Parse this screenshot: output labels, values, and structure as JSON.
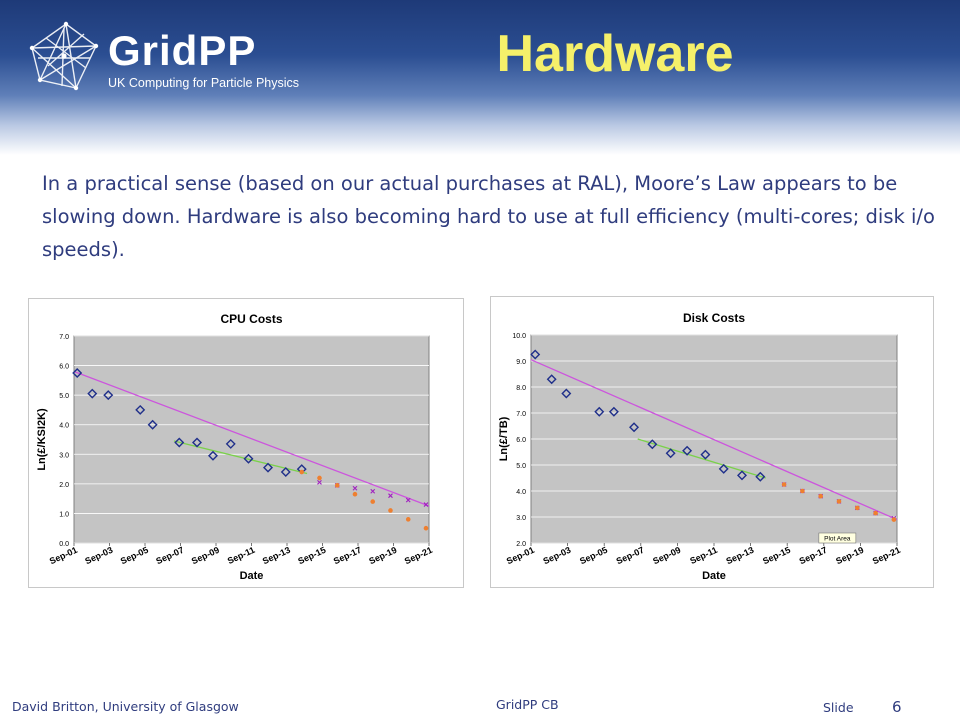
{
  "header": {
    "logo": {
      "name": "GridPP",
      "subtitle": "UK Computing for Particle Physics"
    },
    "title": "Hardware"
  },
  "body": {
    "intro": "In a practical sense (based on our actual purchases at RAL), Moore’s Law appears to be slowing down. Hardware is also becoming hard to use at full efficiency (multi-cores; disk i/o speeds)."
  },
  "chart_data": [
    {
      "type": "scatter",
      "title": "CPU Costs",
      "xlabel": "Date",
      "ylabel": "Ln(£/KSI2K)",
      "ylim": [
        0,
        7
      ],
      "yticks": [
        "0.0",
        "1.0",
        "2.0",
        "3.0",
        "4.0",
        "5.0",
        "6.0",
        "7.0"
      ],
      "x_tick_labels": [
        "Sep-01",
        "Sep-03",
        "Sep-05",
        "Sep-07",
        "Sep-09",
        "Sep-11",
        "Sep-13",
        "Sep-15",
        "Sep-17",
        "Sep-19",
        "Sep-21"
      ],
      "xlim": [
        2001.67,
        2021.67
      ],
      "grid": true,
      "plot_background": "#c4c4c4",
      "series": [
        {
          "marker": "diamond",
          "color": "#1f2f8a",
          "x": [
            2001.85,
            2002.7,
            2003.6,
            2005.4,
            2006.1,
            2007.6,
            2008.6,
            2009.5,
            2010.5,
            2011.5,
            2012.6,
            2013.6,
            2014.5
          ],
          "y": [
            5.75,
            5.05,
            5.0,
            4.5,
            4.0,
            3.4,
            3.4,
            2.95,
            3.35,
            2.85,
            2.55,
            2.4,
            2.5
          ]
        },
        {
          "marker": "x",
          "color": "#a020c0",
          "x": [
            2015.5,
            2016.5,
            2017.5,
            2018.5,
            2019.5,
            2020.5,
            2021.5
          ],
          "y": [
            2.05,
            1.95,
            1.85,
            1.75,
            1.6,
            1.45,
            1.3
          ]
        },
        {
          "marker": "dot",
          "color": "#ee7f30",
          "x": [
            2014.5,
            2015.5,
            2016.5,
            2017.5,
            2018.5,
            2019.5,
            2020.5,
            2021.5
          ],
          "y": [
            2.4,
            2.2,
            1.95,
            1.65,
            1.4,
            1.1,
            0.8,
            0.5
          ]
        }
      ],
      "trendlines": [
        {
          "color": "#cc55dd",
          "x": [
            2001.67,
            2021.67
          ],
          "y": [
            5.8,
            1.25
          ]
        },
        {
          "color": "#7ad14a",
          "x": [
            2007.3,
            2014.8
          ],
          "y": [
            3.45,
            2.35
          ]
        }
      ]
    },
    {
      "type": "scatter",
      "title": "Disk Costs",
      "xlabel": "Date",
      "ylabel": "Ln(£/TB)",
      "ylim": [
        2,
        10
      ],
      "yticks": [
        "2.0",
        "3.0",
        "4.0",
        "5.0",
        "6.0",
        "7.0",
        "8.0",
        "9.0",
        "10.0"
      ],
      "x_tick_labels": [
        "Sep-01",
        "Sep-03",
        "Sep-05",
        "Sep-07",
        "Sep-09",
        "Sep-11",
        "Sep-13",
        "Sep-15",
        "Sep-17",
        "Sep-19",
        "Sep-21"
      ],
      "xlim": [
        2001.67,
        2021.67
      ],
      "grid": true,
      "plot_background": "#c4c4c4",
      "tooltip": "Plot Area",
      "series": [
        {
          "marker": "diamond",
          "color": "#1f2f8a",
          "x": [
            2001.9,
            2002.8,
            2003.6,
            2005.4,
            2006.2,
            2007.3,
            2008.3,
            2009.3,
            2010.2,
            2011.2,
            2012.2,
            2013.2,
            2014.2
          ],
          "y": [
            9.25,
            8.3,
            7.75,
            7.05,
            7.05,
            6.45,
            5.8,
            5.45,
            5.55,
            5.4,
            4.85,
            4.6,
            4.55
          ]
        },
        {
          "marker": "x",
          "color": "#a020c0",
          "x": [
            2015.5,
            2016.5,
            2017.5,
            2018.5,
            2019.5,
            2020.5,
            2021.5
          ],
          "y": [
            4.25,
            4.0,
            3.8,
            3.6,
            3.35,
            3.15,
            2.95
          ]
        },
        {
          "marker": "dot",
          "color": "#ee7f30",
          "x": [
            2015.5,
            2016.5,
            2017.5,
            2018.5,
            2019.5,
            2020.5,
            2021.5
          ],
          "y": [
            4.25,
            4.0,
            3.8,
            3.6,
            3.35,
            3.15,
            2.9
          ]
        }
      ],
      "trendlines": [
        {
          "color": "#cc55dd",
          "x": [
            2001.67,
            2021.67
          ],
          "y": [
            9.05,
            2.9
          ]
        },
        {
          "color": "#7ad14a",
          "x": [
            2007.5,
            2014.5
          ],
          "y": [
            6.0,
            4.5
          ]
        }
      ]
    }
  ],
  "footer": {
    "author": "David Britton, University of Glasgow",
    "center": "GridPP CB",
    "slide_label": "Slide",
    "slide_number": "6"
  },
  "colors": {
    "header_dark": "#1e3a78",
    "title": "#f5f06a",
    "body_text": "#2f3c7e"
  }
}
